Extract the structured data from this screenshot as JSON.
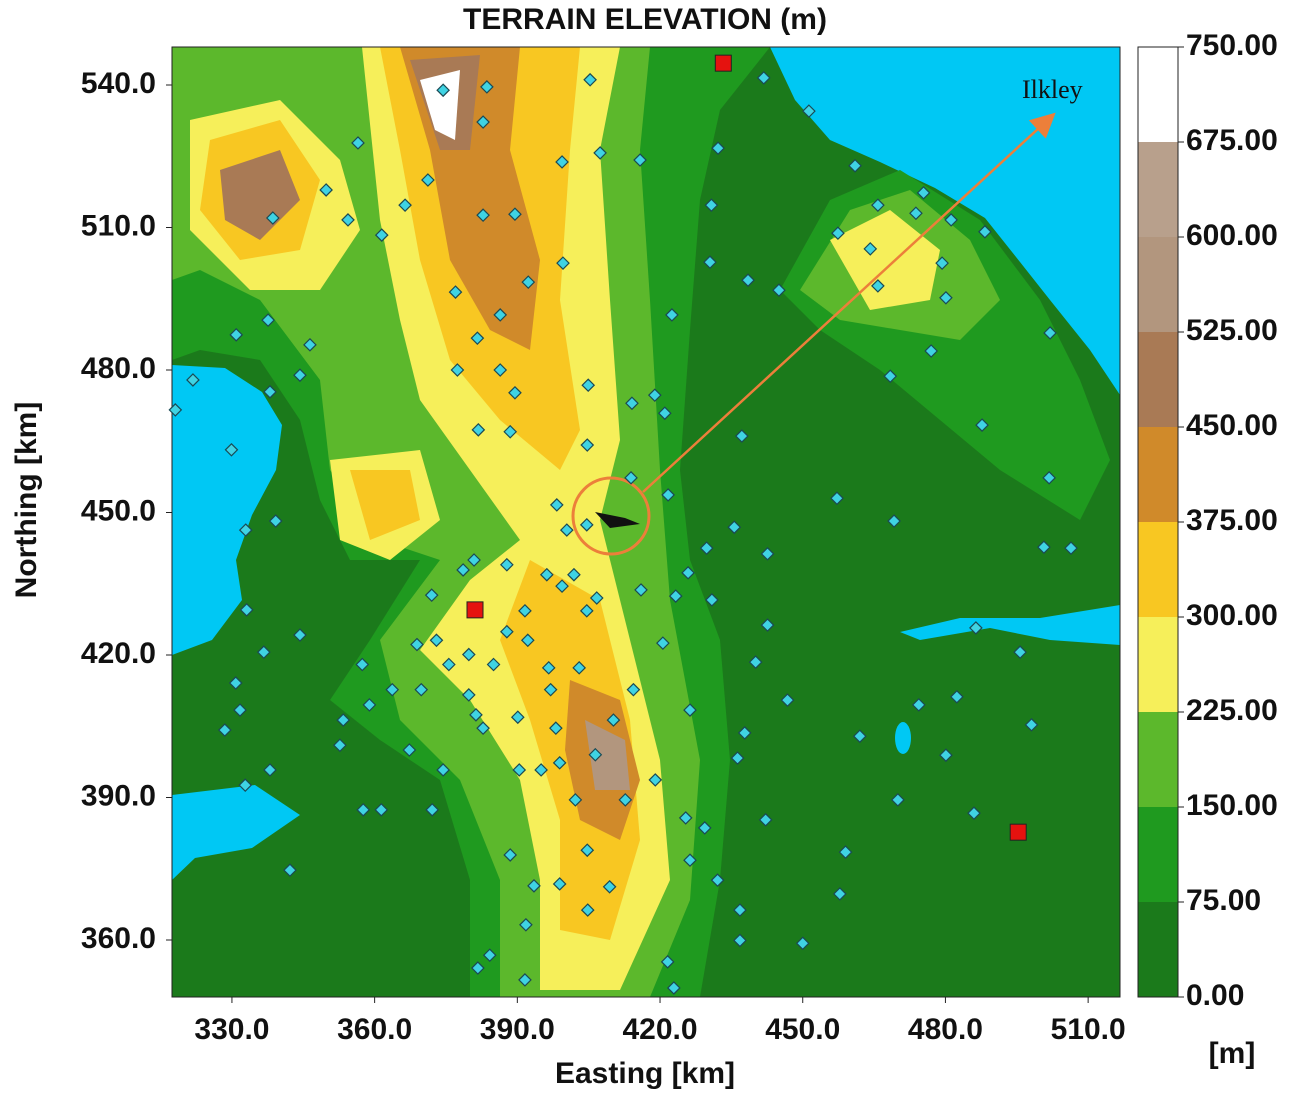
{
  "chart_data": {
    "type": "map",
    "title": "TERRAIN ELEVATION (m)",
    "xlabel": "Easting [km]",
    "ylabel": "Northing [km]",
    "xlim": [
      317.4,
      516.7
    ],
    "ylim": [
      348,
      548
    ],
    "xticks": [
      {
        "value": 330,
        "label": "330.0"
      },
      {
        "value": 360,
        "label": "360.0"
      },
      {
        "value": 390,
        "label": "390.0"
      },
      {
        "value": 420,
        "label": "420.0"
      },
      {
        "value": 450,
        "label": "450.0"
      },
      {
        "value": 480,
        "label": "480.0"
      },
      {
        "value": 510,
        "label": "510.0"
      }
    ],
    "yticks": [
      {
        "value": 360,
        "label": "360.0"
      },
      {
        "value": 390,
        "label": "390.0"
      },
      {
        "value": 420,
        "label": "420.0"
      },
      {
        "value": 450,
        "label": "450.0"
      },
      {
        "value": 480,
        "label": "480.0"
      },
      {
        "value": 510,
        "label": "510.0"
      },
      {
        "value": 540,
        "label": "540.0"
      }
    ],
    "colorbar": {
      "lim": [
        0,
        750
      ],
      "unit": "[m]",
      "ticks": [
        {
          "value": 0,
          "label": "0.00"
        },
        {
          "value": 75,
          "label": "75.00"
        },
        {
          "value": 150,
          "label": "150.00"
        },
        {
          "value": 225,
          "label": "225.00"
        },
        {
          "value": 300,
          "label": "300.00"
        },
        {
          "value": 375,
          "label": "375.00"
        },
        {
          "value": 450,
          "label": "450.00"
        },
        {
          "value": 525,
          "label": "525.00"
        },
        {
          "value": 600,
          "label": "600.00"
        },
        {
          "value": 675,
          "label": "675.00"
        },
        {
          "value": 750,
          "label": "750.00"
        }
      ],
      "colors": [
        "#1b7a1b",
        "#1f9a1f",
        "#5cb82c",
        "#f6ef5a",
        "#f8c722",
        "#d08a2a",
        "#a97a55",
        "#b2967e",
        "#b8a08c",
        "#ffffff"
      ]
    },
    "annotation": "Ilkley",
    "annotation_color": "#ec7f3a",
    "station_color": "#3fd3e3",
    "source_color": "#e5120f",
    "stations": {
      "easting": [
        405.3,
        383.6,
        374.4,
        382.8,
        356.5,
        407.4,
        415.8,
        432.2,
        399.4,
        441.8,
        451.3,
        461,
        430.8,
        473.8,
        481.2,
        475.4,
        465.8,
        488.3,
        457.4,
        464.2,
        479.3,
        480.1,
        465.8,
        445,
        438.5,
        430.5,
        422.5,
        502,
        477,
        468.4,
        487.7,
        501.8,
        500.7,
        506.4,
        457.2,
        469.2,
        437.2,
        442.6,
        442.6,
        495.7,
        486.4,
        482.4,
        474.4,
        498.1,
        480.1,
        462,
        470,
        486,
        459,
        457.8,
        450,
        436.8,
        436.8,
        432.1,
        426.3,
        429.4,
        425.4,
        421.6,
        422.9,
        409.4,
        404.8,
        398.9,
        393.5,
        391.8,
        391.6,
        384.2,
        381.7,
        388.5,
        374.4,
        372.1,
        361.4,
        357.6,
        342.2,
        332.8,
        338,
        328.5,
        331.7,
        330.8,
        336.7,
        344.3,
        333.1,
        332.9,
        339.2,
        329.9,
        321.8,
        318.1,
        338,
        344.3,
        337.6,
        330.9,
        346.4,
        349.8,
        354.4,
        338.6,
        361.5,
        366.4,
        371.2,
        389.5,
        382.8,
        399.6,
        392.3,
        377,
        386.4,
        381.6,
        377.4,
        386.4,
        389.5,
        381.8,
        388.5,
        404.9,
        414.1,
        418.9,
        421,
        404.7,
        413.9,
        421.7,
        398.3,
        404.6,
        400.4,
        387.8,
        396.2,
        401.9,
        380.9,
        378.6,
        372,
        373,
        387.8,
        392.2,
        385,
        379.8,
        375.6,
        368.9,
        357.4,
        363.7,
        358.9,
        353.4,
        352.7,
        367.3,
        369.8,
        379.8,
        381.3,
        382.8,
        390.1,
        396.6,
        403,
        397,
        398.1,
        398.9,
        406.4,
        410.2,
        414.4,
        402.2,
        404.7,
        412.7,
        419,
        395,
        390.4,
        426.3,
        437.8,
        436.3,
        442.2,
        446.8,
        440.1,
        420.6,
        416,
        423.3,
        425.9,
        430.9,
        429.8,
        435.6,
        404.6,
        406.7,
        399.4,
        391.6
      ],
      "northing": [
        541.1,
        539.6,
        538.9,
        532.2,
        527.8,
        525.7,
        524.2,
        526.7,
        523.8,
        541.5,
        534.5,
        523,
        514.7,
        513,
        511.6,
        517.3,
        514.7,
        509.1,
        508.8,
        505.5,
        502.5,
        495.2,
        497.7,
        496.8,
        498.9,
        502.7,
        491.6,
        487.8,
        484,
        478.7,
        468.4,
        457.3,
        442.7,
        442.5,
        453,
        448.2,
        466.1,
        441.3,
        426.3,
        420.6,
        425.7,
        411.2,
        409.5,
        405.3,
        398.9,
        402.9,
        389.5,
        386.7,
        378.5,
        369.7,
        359.3,
        359.9,
        366.3,
        372.6,
        376.8,
        383.6,
        385.7,
        355.4,
        349.9,
        371.2,
        366.3,
        371.8,
        371.4,
        363.2,
        351.6,
        356.8,
        354.1,
        377.9,
        395.8,
        387.4,
        387.4,
        387.4,
        374.7,
        392.6,
        395.8,
        404.2,
        408.4,
        414.1,
        420.6,
        424.2,
        429.5,
        446.3,
        448.2,
        463.2,
        477.9,
        471.6,
        475.4,
        478.9,
        490.5,
        487.4,
        485.3,
        517.9,
        511.6,
        512,
        508.4,
        514.7,
        520,
        512.8,
        512.6,
        502.5,
        498.5,
        496.4,
        491.6,
        486.7,
        480,
        480,
        475.2,
        467.4,
        467,
        476.8,
        473,
        474.7,
        470.9,
        464.2,
        457.3,
        453.7,
        451.6,
        447.4,
        446.3,
        439,
        436.9,
        436.9,
        440,
        437.9,
        432.6,
        423.1,
        424.9,
        423.1,
        418,
        420.1,
        418,
        422.2,
        418,
        412.7,
        409.5,
        406.3,
        401,
        400,
        412.7,
        411.6,
        407.4,
        404.6,
        406.9,
        417.3,
        417.3,
        412.7,
        404.6,
        397.3,
        399,
        406.3,
        412.7,
        389.5,
        378.9,
        389.5,
        393.7,
        395.8,
        395.8,
        408.4,
        403.6,
        398.3,
        385.3,
        410.5,
        418.5,
        422.5,
        433.7,
        432.4,
        437.3,
        431.6,
        442.5,
        446.9,
        429.3,
        432,
        434.5,
        429.3
      ]
    },
    "sources": {
      "easting": [
        433.3,
        381.1,
        495.3
      ],
      "northing": [
        544.6,
        429.5,
        382.7
      ]
    }
  }
}
